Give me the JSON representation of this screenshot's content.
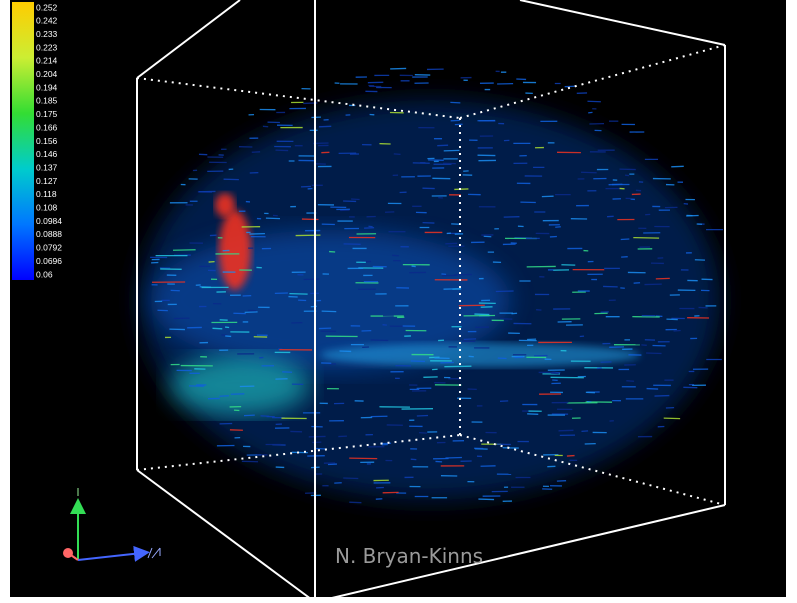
{
  "colorbar": {
    "labels": [
      "0.252",
      "0.242",
      "0.233",
      "0.223",
      "0.214",
      "0.204",
      "0.194",
      "0.185",
      "0.175",
      "0.166",
      "0.156",
      "0.146",
      "0.137",
      "0.127",
      "0.118",
      "0.108",
      "0.0984",
      "0.0888",
      "0.0792",
      "0.0696",
      "0.06"
    ]
  },
  "credit": "N. Bryan-Kinns"
}
